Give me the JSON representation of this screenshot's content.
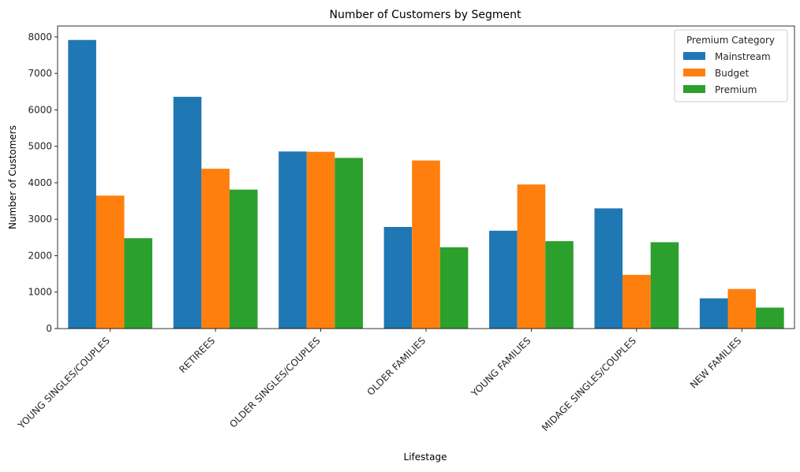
{
  "chart_data": {
    "type": "bar",
    "title": "Number of Customers by Segment",
    "xlabel": "Lifestage",
    "ylabel": "Number of Customers",
    "ylim": [
      0,
      8300
    ],
    "yticks": [
      0,
      1000,
      2000,
      3000,
      4000,
      5000,
      6000,
      7000,
      8000
    ],
    "grid": false,
    "legend_position": "top-right",
    "legend_title": "Premium Category",
    "categories": [
      "YOUNG SINGLES/COUPLES",
      "RETIREES",
      "OLDER SINGLES/COUPLES",
      "OLDER FAMILIES",
      "YOUNG FAMILIES",
      "MIDAGE SINGLES/COUPLES",
      "NEW FAMILIES"
    ],
    "series": [
      {
        "name": "Mainstream",
        "color": "#1f77b4",
        "values": [
          7917,
          6358,
          4858,
          2788,
          2685,
          3298,
          830
        ]
      },
      {
        "name": "Budget",
        "color": "#ff7f0e",
        "values": [
          3647,
          4385,
          4849,
          4611,
          3953,
          1474,
          1087
        ]
      },
      {
        "name": "Premium",
        "color": "#2ca02c",
        "values": [
          2480,
          3812,
          4682,
          2231,
          2398,
          2369,
          575
        ]
      }
    ]
  }
}
